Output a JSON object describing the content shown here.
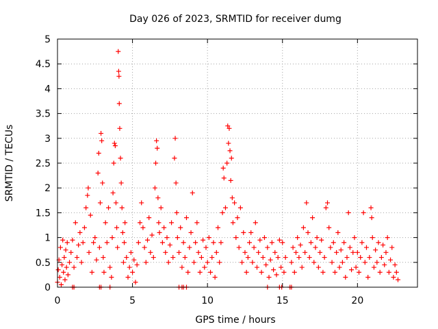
{
  "chart_data": {
    "type": "scatter",
    "title": "Day 026 of 2023, SRMTID for receiver dumg",
    "xlabel": "GPS time / hours",
    "ylabel": "SRMTID / TECUs",
    "xlim": [
      0,
      24
    ],
    "ylim": [
      0,
      5
    ],
    "xticks": [
      0,
      5,
      10,
      15,
      20
    ],
    "xtick_labels": [
      "0",
      "5",
      "10",
      "15",
      "20"
    ],
    "yticks": [
      0,
      0.5,
      1,
      1.5,
      2,
      2.5,
      3,
      3.5,
      4,
      4.5,
      5
    ],
    "ytick_labels": [
      "0",
      "0.5",
      "1",
      "1.5",
      "2",
      "2.5",
      "3",
      "3.5",
      "4",
      "4.5",
      "5"
    ],
    "grid": true,
    "marker": "plus",
    "marker_color": "#ff0000",
    "series": [
      {
        "name": "SRMTID",
        "points": [
          [
            0.0,
            0.1
          ],
          [
            0.05,
            0.35
          ],
          [
            0.1,
            0.55
          ],
          [
            0.15,
            0.2
          ],
          [
            0.2,
            0.8
          ],
          [
            0.25,
            0.05
          ],
          [
            0.3,
            0.45
          ],
          [
            0.35,
            0.95
          ],
          [
            0.4,
            0.3
          ],
          [
            0.45,
            0.6
          ],
          [
            0.5,
            0.15
          ],
          [
            0.55,
            0.75
          ],
          [
            0.6,
            0.4
          ],
          [
            0.65,
            0.9
          ],
          [
            0.7,
            0.25
          ],
          [
            0.8,
            0.5
          ],
          [
            0.9,
            0.7
          ],
          [
            1.0,
            0.95
          ],
          [
            1.1,
            0.4
          ],
          [
            1.2,
            1.3
          ],
          [
            1.3,
            0.6
          ],
          [
            1.4,
            0.85
          ],
          [
            1.5,
            1.1
          ],
          [
            1.6,
            0.5
          ],
          [
            1.7,
            0.9
          ],
          [
            1.8,
            1.2
          ],
          [
            1.9,
            1.6
          ],
          [
            2.0,
            1.85
          ],
          [
            2.05,
            2.0
          ],
          [
            2.1,
            0.7
          ],
          [
            2.2,
            1.45
          ],
          [
            2.3,
            0.3
          ],
          [
            2.4,
            0.9
          ],
          [
            2.5,
            1.0
          ],
          [
            2.6,
            0.55
          ],
          [
            2.7,
            2.3
          ],
          [
            2.75,
            2.7
          ],
          [
            2.8,
            0.8
          ],
          [
            2.85,
            1.7
          ],
          [
            2.9,
            3.1
          ],
          [
            2.95,
            2.95
          ],
          [
            3.0,
            2.1
          ],
          [
            3.05,
            0.6
          ],
          [
            3.1,
            0.3
          ],
          [
            3.2,
            1.3
          ],
          [
            3.3,
            0.9
          ],
          [
            3.4,
            1.6
          ],
          [
            3.5,
            0.4
          ],
          [
            3.6,
            0.2
          ],
          [
            3.65,
            1.0
          ],
          [
            3.7,
            1.9
          ],
          [
            3.75,
            2.5
          ],
          [
            3.8,
            2.9
          ],
          [
            3.85,
            2.85
          ],
          [
            3.9,
            1.7
          ],
          [
            3.95,
            1.2
          ],
          [
            4.0,
            0.8
          ],
          [
            4.05,
            4.75
          ],
          [
            4.08,
            4.35
          ],
          [
            4.1,
            4.25
          ],
          [
            4.12,
            3.7
          ],
          [
            4.15,
            3.2
          ],
          [
            4.2,
            2.6
          ],
          [
            4.25,
            2.1
          ],
          [
            4.3,
            1.6
          ],
          [
            4.35,
            1.1
          ],
          [
            4.4,
            0.5
          ],
          [
            4.45,
            0.9
          ],
          [
            4.5,
            1.3
          ],
          [
            4.6,
            0.6
          ],
          [
            4.7,
            0.2
          ],
          [
            4.8,
            0.4
          ],
          [
            4.9,
            0.7
          ],
          [
            5.0,
            0.3
          ],
          [
            5.1,
            0.55
          ],
          [
            5.2,
            0.1
          ],
          [
            5.3,
            0.45
          ],
          [
            5.4,
            0.9
          ],
          [
            5.5,
            1.3
          ],
          [
            5.6,
            1.7
          ],
          [
            5.7,
            1.2
          ],
          [
            5.8,
            0.8
          ],
          [
            5.9,
            0.5
          ],
          [
            6.0,
            0.95
          ],
          [
            6.1,
            1.4
          ],
          [
            6.2,
            0.7
          ],
          [
            6.3,
            1.05
          ],
          [
            6.4,
            0.6
          ],
          [
            6.5,
            2.0
          ],
          [
            6.55,
            2.5
          ],
          [
            6.6,
            2.95
          ],
          [
            6.65,
            2.8
          ],
          [
            6.7,
            1.8
          ],
          [
            6.75,
            1.3
          ],
          [
            6.8,
            1.1
          ],
          [
            6.9,
            1.6
          ],
          [
            7.0,
            0.9
          ],
          [
            7.1,
            1.2
          ],
          [
            7.2,
            0.7
          ],
          [
            7.3,
            1.0
          ],
          [
            7.4,
            0.5
          ],
          [
            7.5,
            0.85
          ],
          [
            7.6,
            1.3
          ],
          [
            7.7,
            0.6
          ],
          [
            7.8,
            2.6
          ],
          [
            7.85,
            3.0
          ],
          [
            7.9,
            2.1
          ],
          [
            7.95,
            1.5
          ],
          [
            8.0,
            1.0
          ],
          [
            8.1,
            0.7
          ],
          [
            8.2,
            1.2
          ],
          [
            8.3,
            0.4
          ],
          [
            8.4,
            0.9
          ],
          [
            8.5,
            0.6
          ],
          [
            8.6,
            1.4
          ],
          [
            8.7,
            0.3
          ],
          [
            8.8,
            0.8
          ],
          [
            8.9,
            1.1
          ],
          [
            9.0,
            1.9
          ],
          [
            9.1,
            0.5
          ],
          [
            9.2,
            0.9
          ],
          [
            9.3,
            1.3
          ],
          [
            9.4,
            0.7
          ],
          [
            9.5,
            0.3
          ],
          [
            9.6,
            0.6
          ],
          [
            9.7,
            0.95
          ],
          [
            9.8,
            0.4
          ],
          [
            9.9,
            0.8
          ],
          [
            10.0,
            0.5
          ],
          [
            10.1,
            1.0
          ],
          [
            10.2,
            0.3
          ],
          [
            10.3,
            0.6
          ],
          [
            10.4,
            0.9
          ],
          [
            10.5,
            0.2
          ],
          [
            10.6,
            0.7
          ],
          [
            10.7,
            1.2
          ],
          [
            10.8,
            0.5
          ],
          [
            10.9,
            0.9
          ],
          [
            11.0,
            1.5
          ],
          [
            11.05,
            2.4
          ],
          [
            11.1,
            2.2
          ],
          [
            11.2,
            1.6
          ],
          [
            11.3,
            2.5
          ],
          [
            11.35,
            3.25
          ],
          [
            11.4,
            2.9
          ],
          [
            11.45,
            3.2
          ],
          [
            11.5,
            2.75
          ],
          [
            11.55,
            2.15
          ],
          [
            11.6,
            2.6
          ],
          [
            11.65,
            1.8
          ],
          [
            11.7,
            1.3
          ],
          [
            11.8,
            1.7
          ],
          [
            11.9,
            1.0
          ],
          [
            12.0,
            1.4
          ],
          [
            12.1,
            0.8
          ],
          [
            12.2,
            1.6
          ],
          [
            12.3,
            0.5
          ],
          [
            12.4,
            1.1
          ],
          [
            12.5,
            0.7
          ],
          [
            12.6,
            0.3
          ],
          [
            12.7,
            0.6
          ],
          [
            12.8,
            0.9
          ],
          [
            12.9,
            1.1
          ],
          [
            13.0,
            0.5
          ],
          [
            13.1,
            0.8
          ],
          [
            13.2,
            1.3
          ],
          [
            13.3,
            0.4
          ],
          [
            13.4,
            0.7
          ],
          [
            13.5,
            0.95
          ],
          [
            13.6,
            0.3
          ],
          [
            13.7,
            0.6
          ],
          [
            13.8,
            1.0
          ],
          [
            13.9,
            0.45
          ],
          [
            14.0,
            0.8
          ],
          [
            14.1,
            0.2
          ],
          [
            14.2,
            0.55
          ],
          [
            14.3,
            0.9
          ],
          [
            14.4,
            0.35
          ],
          [
            14.5,
            0.7
          ],
          [
            14.6,
            0.25
          ],
          [
            14.7,
            0.6
          ],
          [
            14.8,
            0.95
          ],
          [
            14.9,
            0.4
          ],
          [
            15.0,
            0.9
          ],
          [
            15.1,
            0.3
          ],
          [
            15.2,
            0.6
          ],
          [
            15.6,
            0.5
          ],
          [
            15.7,
            0.8
          ],
          [
            15.8,
            0.3
          ],
          [
            15.9,
            0.7
          ],
          [
            16.0,
            1.0
          ],
          [
            16.1,
            0.6
          ],
          [
            16.2,
            0.85
          ],
          [
            16.3,
            0.4
          ],
          [
            16.4,
            1.2
          ],
          [
            16.5,
            0.7
          ],
          [
            16.6,
            1.7
          ],
          [
            16.7,
            1.1
          ],
          [
            16.8,
            0.6
          ],
          [
            16.9,
            0.9
          ],
          [
            17.0,
            1.4
          ],
          [
            17.1,
            0.5
          ],
          [
            17.2,
            0.8
          ],
          [
            17.3,
            1.0
          ],
          [
            17.4,
            0.4
          ],
          [
            17.5,
            0.7
          ],
          [
            17.6,
            0.95
          ],
          [
            17.7,
            0.3
          ],
          [
            17.8,
            0.6
          ],
          [
            17.9,
            1.6
          ],
          [
            18.0,
            1.7
          ],
          [
            18.1,
            1.2
          ],
          [
            18.2,
            0.8
          ],
          [
            18.3,
            0.5
          ],
          [
            18.4,
            0.9
          ],
          [
            18.5,
            0.3
          ],
          [
            18.6,
            0.7
          ],
          [
            18.7,
            1.1
          ],
          [
            18.8,
            0.4
          ],
          [
            18.9,
            0.75
          ],
          [
            19.0,
            0.5
          ],
          [
            19.1,
            0.9
          ],
          [
            19.2,
            0.2
          ],
          [
            19.3,
            0.6
          ],
          [
            19.4,
            1.5
          ],
          [
            19.5,
            0.8
          ],
          [
            19.6,
            0.35
          ],
          [
            19.7,
            0.7
          ],
          [
            19.8,
            1.0
          ],
          [
            19.9,
            0.4
          ],
          [
            20.0,
            0.7
          ],
          [
            20.1,
            0.3
          ],
          [
            20.2,
            0.6
          ],
          [
            20.3,
            0.9
          ],
          [
            20.4,
            1.5
          ],
          [
            20.5,
            0.5
          ],
          [
            20.6,
            0.8
          ],
          [
            20.7,
            0.2
          ],
          [
            20.8,
            0.6
          ],
          [
            20.9,
            1.6
          ],
          [
            20.95,
            1.4
          ],
          [
            21.0,
            1.0
          ],
          [
            21.1,
            0.4
          ],
          [
            21.2,
            0.75
          ],
          [
            21.3,
            0.5
          ],
          [
            21.4,
            0.9
          ],
          [
            21.5,
            0.3
          ],
          [
            21.6,
            0.6
          ],
          [
            21.7,
            0.85
          ],
          [
            21.8,
            0.45
          ],
          [
            21.9,
            0.7
          ],
          [
            22.0,
            1.0
          ],
          [
            22.1,
            0.3
          ],
          [
            22.2,
            0.55
          ],
          [
            22.3,
            0.8
          ],
          [
            22.4,
            0.2
          ],
          [
            22.5,
            0.45
          ],
          [
            22.6,
            0.3
          ],
          [
            22.7,
            0.15
          ],
          [
            1.0,
            0.0
          ],
          [
            1.1,
            0.0
          ],
          [
            2.8,
            0.0
          ],
          [
            2.9,
            0.0
          ],
          [
            3.5,
            0.0
          ],
          [
            8.1,
            0.0
          ],
          [
            8.3,
            0.0
          ],
          [
            8.4,
            0.0
          ],
          [
            8.6,
            0.0
          ],
          [
            14.0,
            0.0
          ],
          [
            14.8,
            0.0
          ],
          [
            14.95,
            0.0
          ],
          [
            15.5,
            0.0
          ],
          [
            15.6,
            0.0
          ]
        ]
      }
    ]
  }
}
